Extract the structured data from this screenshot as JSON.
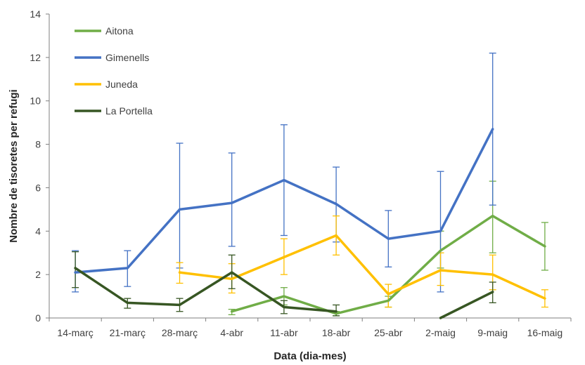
{
  "chart_data": {
    "type": "line",
    "title": "",
    "xlabel": "Data (dia-mes)",
    "ylabel": "Nombre de tisoretes per refugi",
    "categories": [
      "14-març",
      "21-març",
      "28-març",
      "4-abr",
      "11-abr",
      "18-abr",
      "25-abr",
      "2-maig",
      "9-maig",
      "16-maig"
    ],
    "ylim": [
      0,
      14
    ],
    "yticks": [
      0,
      2,
      4,
      6,
      8,
      10,
      12,
      14
    ],
    "grid": false,
    "legend": "top-left",
    "series": [
      {
        "name": "Aitona",
        "color": "#70ad47",
        "values": [
          null,
          null,
          null,
          0.3,
          1.0,
          0.2,
          0.8,
          3.1,
          4.7,
          3.3
        ],
        "err_high": [
          null,
          null,
          null,
          0.4,
          1.4,
          0.3,
          1.0,
          4.0,
          6.3,
          4.4
        ],
        "err_low": [
          null,
          null,
          null,
          0.15,
          0.6,
          0.1,
          0.5,
          2.3,
          3.0,
          2.2
        ]
      },
      {
        "name": "Gimenells",
        "color": "#4472c4",
        "values": [
          2.1,
          2.3,
          5.0,
          5.3,
          6.35,
          5.25,
          3.65,
          4.0,
          8.7,
          null
        ],
        "err_high": [
          3.1,
          3.1,
          8.05,
          7.6,
          8.9,
          6.95,
          4.95,
          6.75,
          12.2,
          null
        ],
        "err_low": [
          1.2,
          1.45,
          2.3,
          3.3,
          3.8,
          3.5,
          2.35,
          1.2,
          5.2,
          null
        ]
      },
      {
        "name": "Juneda",
        "color": "#ffc000",
        "values": [
          null,
          null,
          2.1,
          1.8,
          2.8,
          3.8,
          1.1,
          2.2,
          2.0,
          0.9
        ],
        "err_high": [
          null,
          null,
          2.55,
          2.5,
          3.65,
          4.7,
          1.55,
          3.0,
          2.9,
          1.3
        ],
        "err_low": [
          null,
          null,
          1.6,
          1.15,
          2.0,
          2.9,
          0.5,
          1.5,
          1.3,
          0.5
        ]
      },
      {
        "name": "La Portella",
        "color": "#375623",
        "values": [
          2.3,
          0.7,
          0.6,
          2.1,
          0.5,
          0.3,
          null,
          0.0,
          1.2,
          null
        ],
        "err_high": [
          3.05,
          0.9,
          0.9,
          2.9,
          0.8,
          0.6,
          null,
          null,
          1.65,
          null
        ],
        "err_low": [
          1.4,
          0.45,
          0.3,
          1.35,
          0.2,
          0.1,
          null,
          null,
          0.7,
          null
        ]
      }
    ]
  }
}
